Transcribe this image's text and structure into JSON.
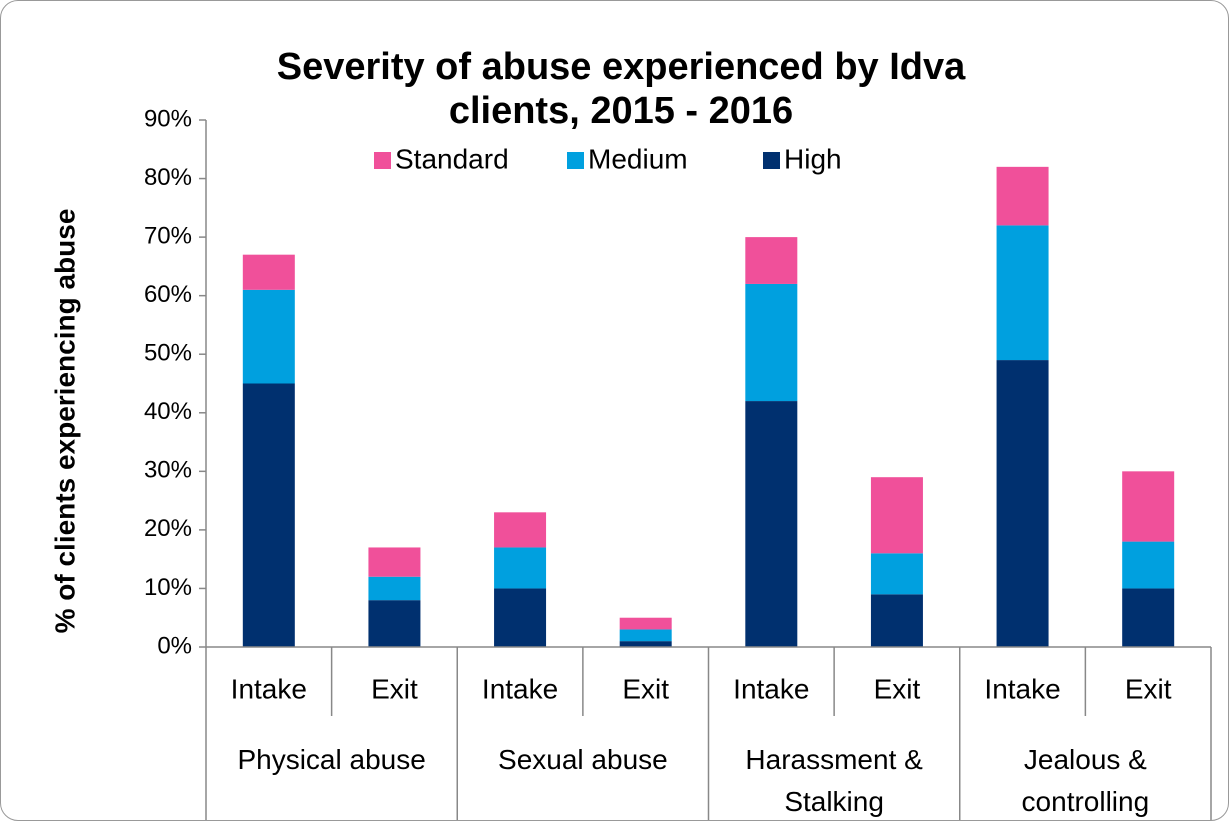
{
  "chart_data": {
    "type": "stacked_bar",
    "title": "Severity of abuse experienced by Idva clients, 2015 - 2016",
    "y_label": "% of clients experiencing abuse",
    "categories": [
      "Intake",
      "Exit",
      "Intake",
      "Exit",
      "Intake",
      "Exit",
      "Intake",
      "Exit"
    ],
    "groups": [
      "Physical abuse",
      "Sexual abuse",
      "Harassment & Stalking",
      "Jealous & controlling"
    ],
    "series": [
      {
        "name": "High",
        "color": "#00306f",
        "values": [
          45,
          8,
          10,
          1,
          42,
          9,
          49,
          10
        ]
      },
      {
        "name": "Medium",
        "color": "#00a0df",
        "values": [
          16,
          4,
          7,
          2,
          20,
          7,
          23,
          8
        ]
      },
      {
        "name": "Standard",
        "color": "#f0509a",
        "values": [
          6,
          5,
          6,
          2,
          8,
          13,
          10,
          12
        ]
      }
    ],
    "ylim": [
      0,
      90
    ],
    "yticks": [
      {
        "value": 0,
        "label": "0%"
      },
      {
        "value": 10,
        "label": "10%"
      },
      {
        "value": 20,
        "label": "20%"
      },
      {
        "value": 30,
        "label": "30%"
      },
      {
        "value": 40,
        "label": "40%"
      },
      {
        "value": 50,
        "label": "50%"
      },
      {
        "value": 60,
        "label": "60%"
      },
      {
        "value": 70,
        "label": "70%"
      },
      {
        "value": 80,
        "label": "80%"
      },
      {
        "value": 90,
        "label": "90%"
      }
    ],
    "legend": "top",
    "legend_order": "reversed"
  }
}
